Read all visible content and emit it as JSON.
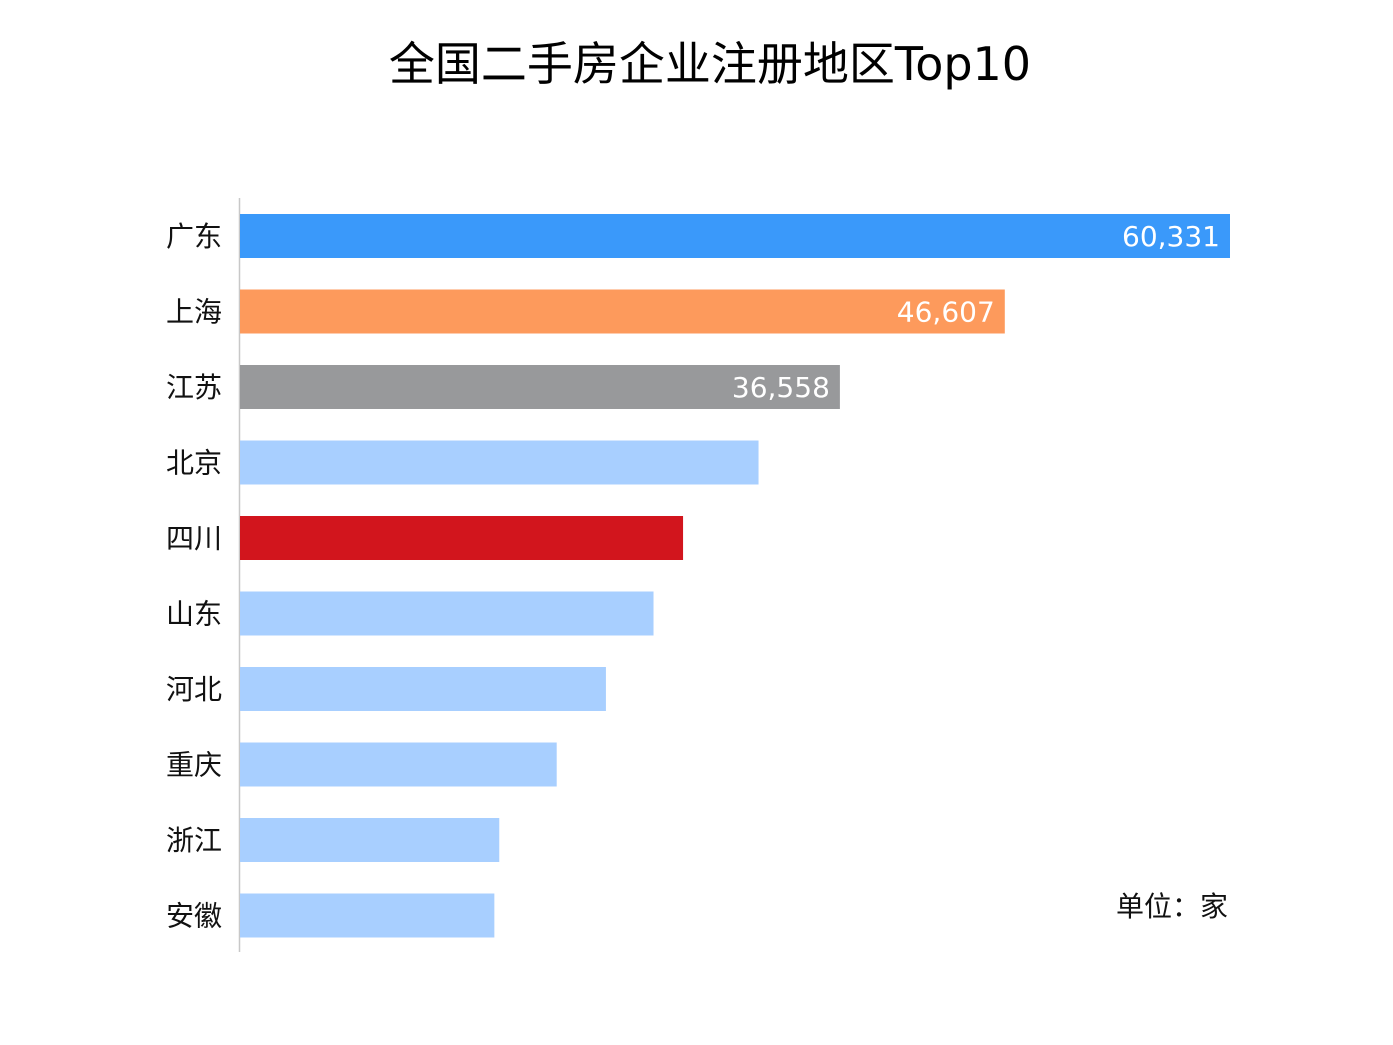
{
  "chart_data": {
    "type": "bar",
    "orientation": "horizontal",
    "title": "全国二手房企业注册地区Top10",
    "unit_note": "单位：家",
    "categories": [
      "广东",
      "上海",
      "江苏",
      "北京",
      "四川",
      "山东",
      "河北",
      "重庆",
      "浙江",
      "安徽"
    ],
    "values": [
      60331,
      46607,
      36558,
      31600,
      27000,
      25200,
      22300,
      19300,
      15800,
      15500
    ],
    "value_labels": [
      "60,331",
      "46,607",
      "36,558",
      "",
      "",
      "",
      "",
      "",
      "",
      ""
    ],
    "xlim": [
      0,
      60331
    ],
    "grid": false,
    "legend": "none",
    "colors": [
      "#3a99fa",
      "#fd9a5c",
      "#98999b",
      "#a8cfff",
      "#d2151d",
      "#a8cfff",
      "#a8cfff",
      "#a8cfff",
      "#a8cfff",
      "#a8cfff"
    ],
    "axis_color": "#c8c8c8"
  }
}
